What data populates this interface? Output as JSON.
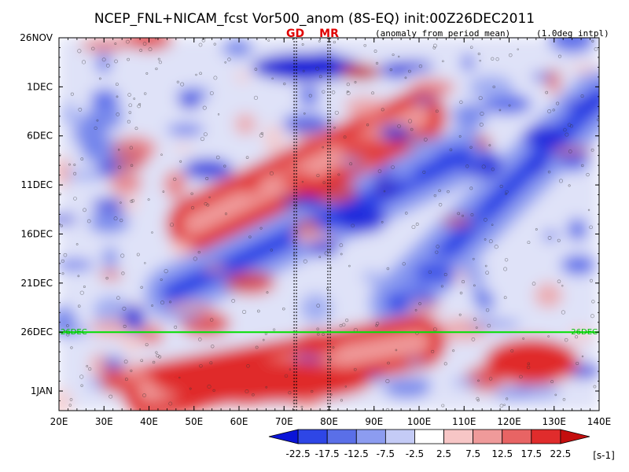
{
  "chart_data": {
    "type": "heatmap",
    "title": "NCEP_FNL+NICAM_fcst Vor500_anom (8S-EQ) init:00Z26DEC2011",
    "subtitle_left": "(anomaly from period mean)",
    "subtitle_right": "(1.0deg intpl)",
    "x_axis": {
      "min": 20,
      "max": 140,
      "ticks": [
        "20E",
        "30E",
        "40E",
        "50E",
        "60E",
        "70E",
        "80E",
        "90E",
        "100E",
        "110E",
        "120E",
        "130E",
        "140E"
      ]
    },
    "y_axis": {
      "start": "26NOV2011",
      "end": "3JAN2012",
      "ticks": [
        "26NOV",
        "1DEC",
        "6DEC",
        "11DEC",
        "16DEC",
        "21DEC",
        "26DEC",
        "1JAN"
      ],
      "tick_days": [
        0,
        5,
        10,
        15,
        20,
        25,
        30,
        36
      ]
    },
    "reference_lines": [
      {
        "label": "GD",
        "lon": 72.5
      },
      {
        "label": "MR",
        "lon": 80
      }
    ],
    "forecast_start": {
      "label": "26DEC",
      "day": 30,
      "color": "#00e000"
    },
    "colorbar": {
      "levels": [
        "-22.5",
        "-17.5",
        "-12.5",
        "-7.5",
        "-2.5",
        "2.5",
        "7.5",
        "12.5",
        "17.5",
        "22.5"
      ],
      "colors": [
        "#0a14d8",
        "#2e46e6",
        "#5a6fe8",
        "#8c9cf0",
        "#c4cbf6",
        "#ffffff",
        "#f7c6c6",
        "#ef9a9a",
        "#e86464",
        "#e02c2c",
        "#c40e0e"
      ],
      "unit": "[s-1]"
    },
    "anomaly_bands": [
      {
        "sign": "negative",
        "desc": "westward-tilted blue band",
        "from_lon": 45,
        "from_day": 26,
        "to_lon": 110,
        "to_day": 12
      },
      {
        "sign": "negative",
        "desc": "eastern blue band",
        "from_lon": 95,
        "from_day": 27,
        "to_lon": 140,
        "to_day": 6
      },
      {
        "sign": "positive",
        "desc": "central red band",
        "from_lon": 50,
        "from_day": 19,
        "to_lon": 100,
        "to_day": 8
      },
      {
        "sign": "positive",
        "desc": "forecast red region",
        "from_lon": 40,
        "from_day": 36,
        "to_lon": 100,
        "to_day": 31
      }
    ]
  }
}
